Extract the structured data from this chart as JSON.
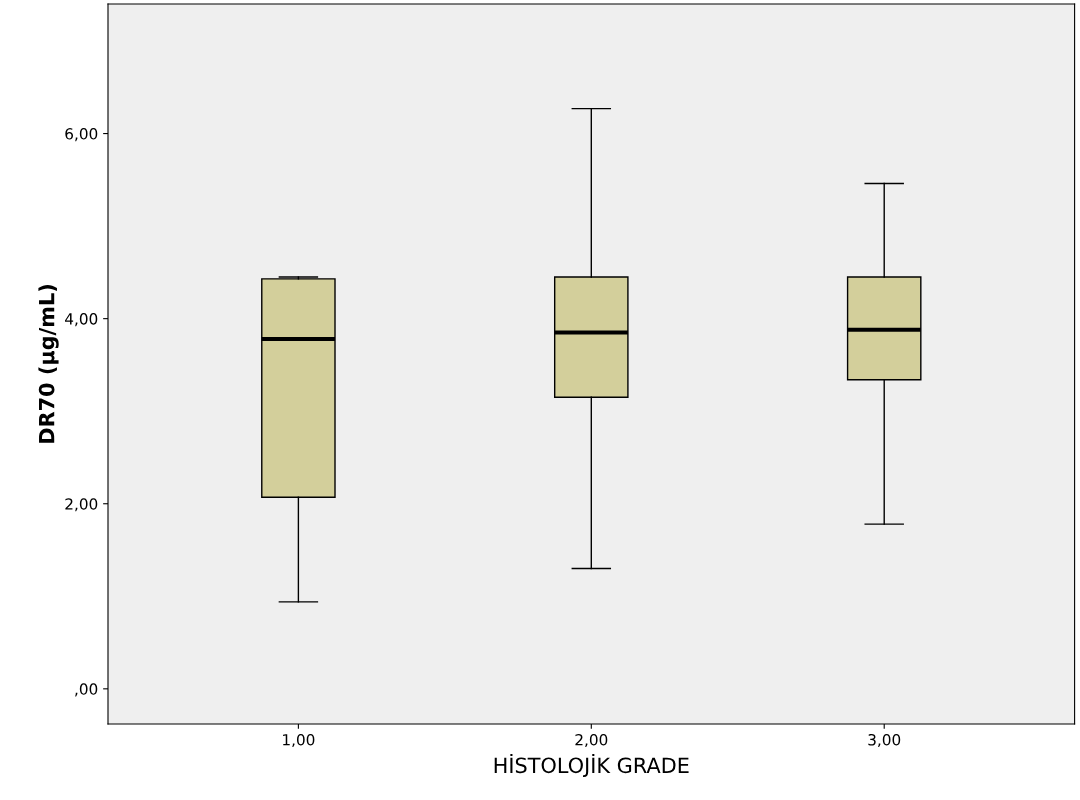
{
  "chart_data": {
    "type": "box",
    "xlabel": "HİSTOLOJİK GRADE",
    "ylabel": "DR70 (µg/mL)",
    "categories": [
      "1,00",
      "2,00",
      "3,00"
    ],
    "boxes": [
      {
        "low": 0.94,
        "q1": 2.07,
        "median": 3.78,
        "q3": 4.43,
        "high": 4.45
      },
      {
        "low": 1.3,
        "q1": 3.15,
        "median": 3.85,
        "q3": 4.45,
        "high": 6.27
      },
      {
        "low": 1.78,
        "q1": 3.34,
        "median": 3.88,
        "q3": 4.45,
        "high": 5.46
      }
    ],
    "color": "#d3cf9b",
    "ylim": [
      -0.38,
      7.4
    ],
    "yticks": [
      {
        "value": 0,
        "label": ",00"
      },
      {
        "value": 2,
        "label": "2,00"
      },
      {
        "value": 4,
        "label": "4,00"
      },
      {
        "value": 6,
        "label": "6,00"
      }
    ],
    "grid": false
  }
}
